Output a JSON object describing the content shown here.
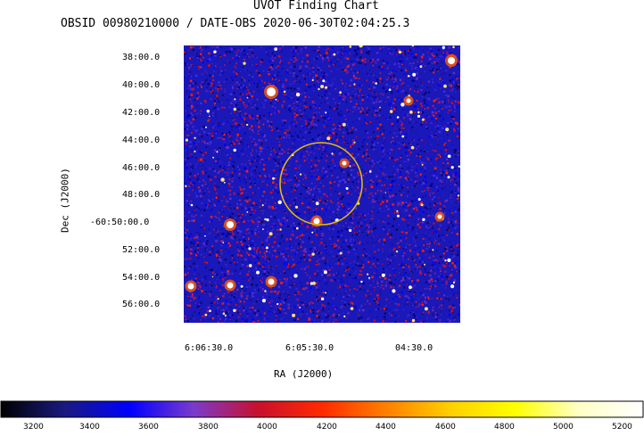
{
  "title": "UVOT Finding Chart",
  "subtitle": "OBSID 00980210000 / DATE-OBS 2020-06-30T02:04:25.3",
  "y_axis": {
    "label": "Dec  (J2000)",
    "ticks": [
      "38:00.0",
      "40:00.0",
      "42:00.0",
      "44:00.0",
      "46:00.0",
      "48:00.0",
      "-60:50:00.0",
      "52:00.0",
      "54:00.0",
      "56:00.0"
    ]
  },
  "x_axis": {
    "label": "RA (J2000)",
    "ticks": [
      "6:06:30.0",
      "6:05:30.0",
      "04:30.0"
    ]
  },
  "colorbar": {
    "ticks": [
      "3200",
      "3400",
      "3600",
      "3800",
      "4000",
      "4200",
      "4400",
      "4600",
      "4800",
      "5000",
      "5200"
    ],
    "colors": [
      "#000000",
      "#1a1a80",
      "#0000ff",
      "#7a3acc",
      "#c8102e",
      "#ff2a00",
      "#ff8000",
      "#ffd000",
      "#ffff00",
      "#ffffc8",
      "#ffffff"
    ]
  },
  "region_color": "#e8c000"
}
